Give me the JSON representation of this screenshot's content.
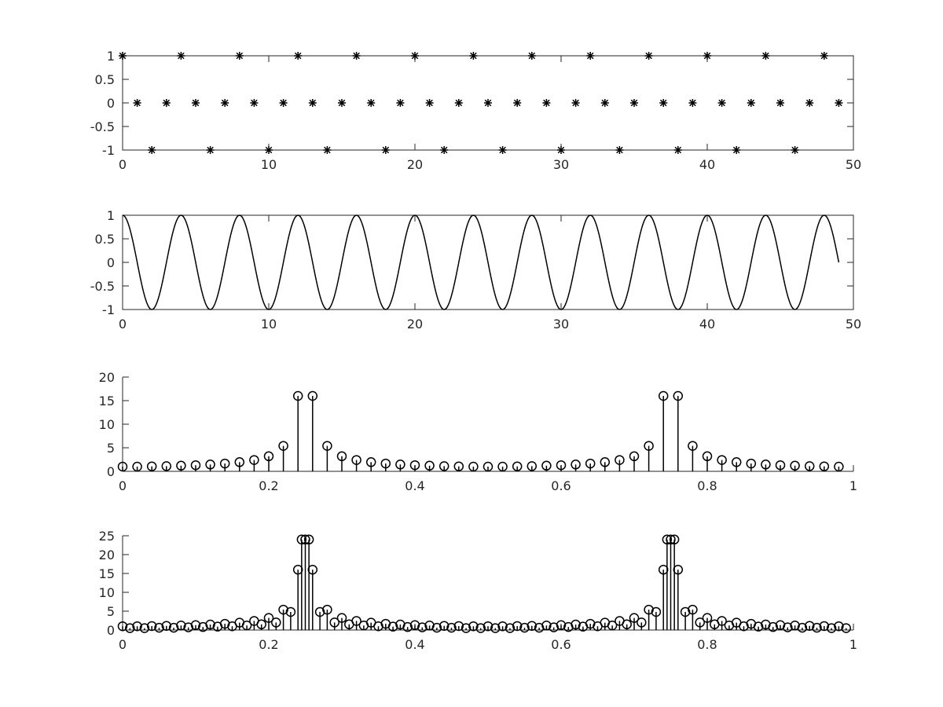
{
  "colors": {
    "background": "#ffffff",
    "axes": "#262626",
    "data": "#000000"
  },
  "chart_data": [
    {
      "type": "scatter",
      "marker": "asterisk",
      "box": true,
      "xlim": [
        0,
        50
      ],
      "ylim": [
        -1,
        1
      ],
      "xticks": [
        0,
        10,
        20,
        30,
        40,
        50
      ],
      "xtick_labels": [
        "0",
        "10",
        "20",
        "30",
        "40",
        "50"
      ],
      "yticks": [
        -1,
        -0.5,
        0,
        0.5,
        1
      ],
      "ytick_labels": [
        "-1",
        "-0.5",
        "0",
        "0.5",
        "1"
      ],
      "series": [
        {
          "x": [
            0,
            1,
            2,
            3,
            4,
            5,
            6,
            7,
            8,
            9,
            10,
            11,
            12,
            13,
            14,
            15,
            16,
            17,
            18,
            19,
            20,
            21,
            22,
            23,
            24,
            25,
            26,
            27,
            28,
            29,
            30,
            31,
            32,
            33,
            34,
            35,
            36,
            37,
            38,
            39,
            40,
            41,
            42,
            43,
            44,
            45,
            46,
            47,
            48,
            49
          ],
          "y": [
            1,
            0,
            -1,
            0,
            1,
            0,
            -1,
            0,
            1,
            0,
            -1,
            0,
            1,
            0,
            -1,
            0,
            1,
            0,
            -1,
            0,
            1,
            0,
            -1,
            0,
            1,
            0,
            -1,
            0,
            1,
            0,
            -1,
            0,
            1,
            0,
            -1,
            0,
            1,
            0,
            -1,
            0,
            1,
            0,
            -1,
            0,
            1,
            0,
            -1,
            0,
            1,
            0
          ]
        }
      ]
    },
    {
      "type": "line",
      "box": true,
      "xlim": [
        0,
        50
      ],
      "ylim": [
        -1,
        1
      ],
      "xticks": [
        0,
        10,
        20,
        30,
        40,
        50
      ],
      "xtick_labels": [
        "0",
        "10",
        "20",
        "30",
        "40",
        "50"
      ],
      "yticks": [
        -1,
        -0.5,
        0,
        0.5,
        1
      ],
      "ytick_labels": [
        "-1",
        "-0.5",
        "0",
        "0.5",
        "1"
      ],
      "series": [
        {
          "function": "cos(pi*t/2)",
          "x_range": [
            0,
            49
          ],
          "samples": 981
        }
      ]
    },
    {
      "type": "stem",
      "marker": "circle",
      "box": false,
      "xlim": [
        0,
        1
      ],
      "ylim": [
        0,
        20
      ],
      "xticks": [
        0,
        0.2,
        0.4,
        0.6,
        0.8,
        1
      ],
      "xtick_labels": [
        "0",
        "0.2",
        "0.4",
        "0.6",
        "0.8",
        "1"
      ],
      "yticks": [
        0,
        5,
        10,
        15,
        20
      ],
      "ytick_labels": [
        "0",
        "5",
        "10",
        "15",
        "20"
      ],
      "series": [
        {
          "x": [
            0,
            0.02,
            0.04,
            0.06,
            0.08,
            0.1,
            0.12,
            0.14,
            0.16,
            0.18,
            0.2,
            0.22,
            0.24,
            0.26,
            0.28,
            0.3,
            0.32,
            0.34,
            0.36,
            0.38,
            0.4,
            0.42,
            0.44,
            0.46,
            0.48,
            0.5,
            0.52,
            0.54,
            0.56,
            0.58,
            0.6,
            0.62,
            0.64,
            0.66,
            0.68,
            0.7,
            0.72,
            0.74,
            0.76,
            0.78,
            0.8,
            0.82,
            0.84,
            0.86,
            0.88,
            0.9,
            0.92,
            0.94,
            0.96,
            0.98
          ],
          "y": [
            1.0,
            1.0,
            1.05,
            1.1,
            1.2,
            1.3,
            1.45,
            1.65,
            1.95,
            2.4,
            3.2,
            5.4,
            16.0,
            16.0,
            5.4,
            3.2,
            2.4,
            1.95,
            1.65,
            1.45,
            1.3,
            1.2,
            1.1,
            1.05,
            1.0,
            1.0,
            1.0,
            1.05,
            1.1,
            1.2,
            1.3,
            1.45,
            1.65,
            1.95,
            2.4,
            3.2,
            5.4,
            16.0,
            16.0,
            5.4,
            3.2,
            2.4,
            1.95,
            1.65,
            1.45,
            1.3,
            1.2,
            1.1,
            1.05,
            1.0
          ]
        }
      ]
    },
    {
      "type": "stem",
      "marker": "circle",
      "box": false,
      "xlim": [
        0,
        1
      ],
      "ylim": [
        0,
        25
      ],
      "xticks": [
        0,
        0.2,
        0.4,
        0.6,
        0.8,
        1
      ],
      "xtick_labels": [
        "0",
        "0.2",
        "0.4",
        "0.6",
        "0.8",
        "1"
      ],
      "yticks": [
        0,
        5,
        10,
        15,
        20,
        25
      ],
      "ytick_labels": [
        "0",
        "5",
        "10",
        "15",
        "20",
        "25"
      ],
      "series": [
        {
          "x": [
            0,
            0.01,
            0.02,
            0.03,
            0.04,
            0.05,
            0.06,
            0.07,
            0.08,
            0.09,
            0.1,
            0.11,
            0.12,
            0.13,
            0.14,
            0.15,
            0.16,
            0.17,
            0.18,
            0.19,
            0.2,
            0.21,
            0.22,
            0.23,
            0.24,
            0.25,
            0.26,
            0.27,
            0.28,
            0.29,
            0.3,
            0.31,
            0.32,
            0.33,
            0.34,
            0.35,
            0.36,
            0.37,
            0.38,
            0.39,
            0.4,
            0.41,
            0.42,
            0.43,
            0.44,
            0.45,
            0.46,
            0.47,
            0.48,
            0.49,
            0.5,
            0.51,
            0.52,
            0.53,
            0.54,
            0.55,
            0.56,
            0.57,
            0.58,
            0.59,
            0.6,
            0.61,
            0.62,
            0.63,
            0.64,
            0.65,
            0.66,
            0.67,
            0.68,
            0.69,
            0.7,
            0.71,
            0.72,
            0.73,
            0.74,
            0.75,
            0.76,
            0.77,
            0.78,
            0.79,
            0.8,
            0.81,
            0.82,
            0.83,
            0.84,
            0.85,
            0.86,
            0.87,
            0.88,
            0.89,
            0.9,
            0.91,
            0.92,
            0.93,
            0.94,
            0.95,
            0.96,
            0.97,
            0.98,
            0.99
          ],
          "y": [
            1.0,
            0.5,
            1.0,
            0.5,
            1.05,
            0.6,
            1.1,
            0.6,
            1.2,
            0.7,
            1.3,
            0.8,
            1.45,
            0.9,
            1.65,
            1.0,
            1.95,
            1.2,
            2.4,
            1.5,
            3.2,
            2.0,
            5.4,
            4.8,
            16.0,
            24.0,
            16.0,
            4.8,
            5.4,
            2.0,
            3.2,
            1.5,
            2.4,
            1.2,
            1.95,
            1.0,
            1.65,
            0.9,
            1.45,
            0.8,
            1.3,
            0.7,
            1.2,
            0.6,
            1.1,
            0.6,
            1.05,
            0.5,
            1.0,
            0.5,
            1.0,
            0.5,
            1.0,
            0.5,
            1.05,
            0.6,
            1.1,
            0.6,
            1.2,
            0.7,
            1.3,
            0.8,
            1.45,
            0.9,
            1.65,
            1.0,
            1.95,
            1.2,
            2.4,
            1.5,
            3.2,
            2.0,
            5.4,
            4.8,
            16.0,
            24.0,
            16.0,
            4.8,
            5.4,
            2.0,
            3.2,
            1.5,
            2.4,
            1.2,
            1.95,
            1.0,
            1.65,
            0.9,
            1.45,
            0.8,
            1.3,
            0.7,
            1.2,
            0.6,
            1.1,
            0.6,
            1.05,
            0.5,
            1.0,
            0.5
          ]
        },
        {
          "x": [
            0.245,
            0.255,
            0.745,
            0.755
          ],
          "y": [
            24.0,
            24.0,
            24.0,
            24.0
          ]
        }
      ]
    }
  ]
}
